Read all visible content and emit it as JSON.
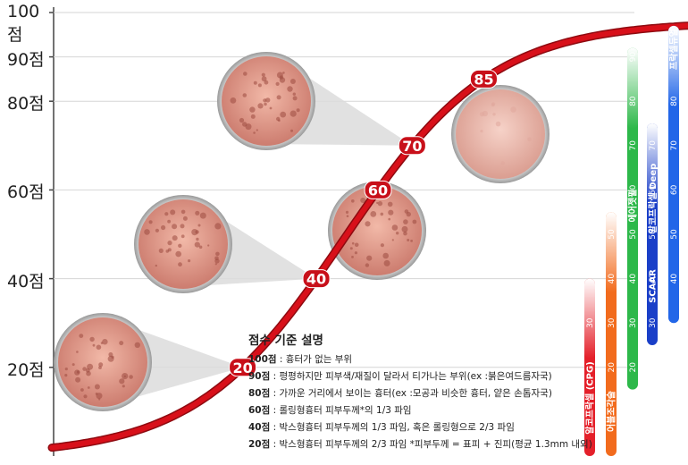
{
  "chart_data": {
    "type": "line",
    "title": "",
    "xlabel": "",
    "ylabel": "",
    "ylim": [
      0,
      100
    ],
    "y_ticks": [
      "20점",
      "40점",
      "60점",
      "80점",
      "90점",
      "100점"
    ],
    "y_tick_values": [
      20,
      40,
      60,
      80,
      90,
      100
    ],
    "series": [
      {
        "name": "",
        "points": [
          20,
          40,
          60,
          70,
          85
        ],
        "color": "#d8101a"
      }
    ],
    "point_labels": [
      "20",
      "40",
      "60",
      "70",
      "85"
    ],
    "bars": [
      {
        "label": "알코프락셀 (CPG)",
        "ticks": [
          "30"
        ],
        "min": 0,
        "max": 40,
        "color": "#e4202a"
      },
      {
        "label": "어블조각술",
        "ticks": [
          "20",
          "30",
          "40",
          "50"
        ],
        "min": 0,
        "max": 55,
        "color": "#f26b1d"
      },
      {
        "label": "에어젯필",
        "ticks": [
          "20",
          "30",
          "40",
          "50",
          "60",
          "70",
          "80",
          "90"
        ],
        "min": 15,
        "max": 92,
        "color": "#2db84a"
      },
      {
        "label": "SCAAR",
        "ticks": [
          "30",
          "40",
          "50",
          "60",
          "70"
        ],
        "min": 25,
        "max": 75,
        "color": "#1a3fc8"
      },
      {
        "label": "알코프락셀 Deep",
        "ticks": [],
        "min": 25,
        "max": 75,
        "color": "#1a3fc8"
      },
      {
        "label": "프락셀듀얼",
        "ticks": [
          "40",
          "50",
          "60",
          "70",
          "80"
        ],
        "min": 30,
        "max": 97,
        "color": "#2266e8"
      }
    ]
  },
  "legend": {
    "title": "점수 기준 설명",
    "rows": [
      {
        "key": "100점",
        "text": ": 흉터가 없는 부위"
      },
      {
        "key": "90점",
        "text": ": 평평하지만 피부색/재질이 달라서 티가나는 부위(ex :붉은여드름자국)"
      },
      {
        "key": "80점",
        "text": ": 가까운 거리에서 보이는 흉터(ex :모공과 비슷한 흉터, 얕은 손톱자국)"
      },
      {
        "key": "60점",
        "text": ": 롤링형흉터 피부두께*의 1/3 파임"
      },
      {
        "key": "40점",
        "text": ": 박스형흉터 피부두께의 1/3 파임, 혹은 롤링형으로 2/3 파임"
      },
      {
        "key": "20점",
        "text": ": 박스형흉터 피부두께의 2/3 파임 *피부두께 = 표피 + 진피(평균 1.3mm 내외)"
      }
    ]
  }
}
